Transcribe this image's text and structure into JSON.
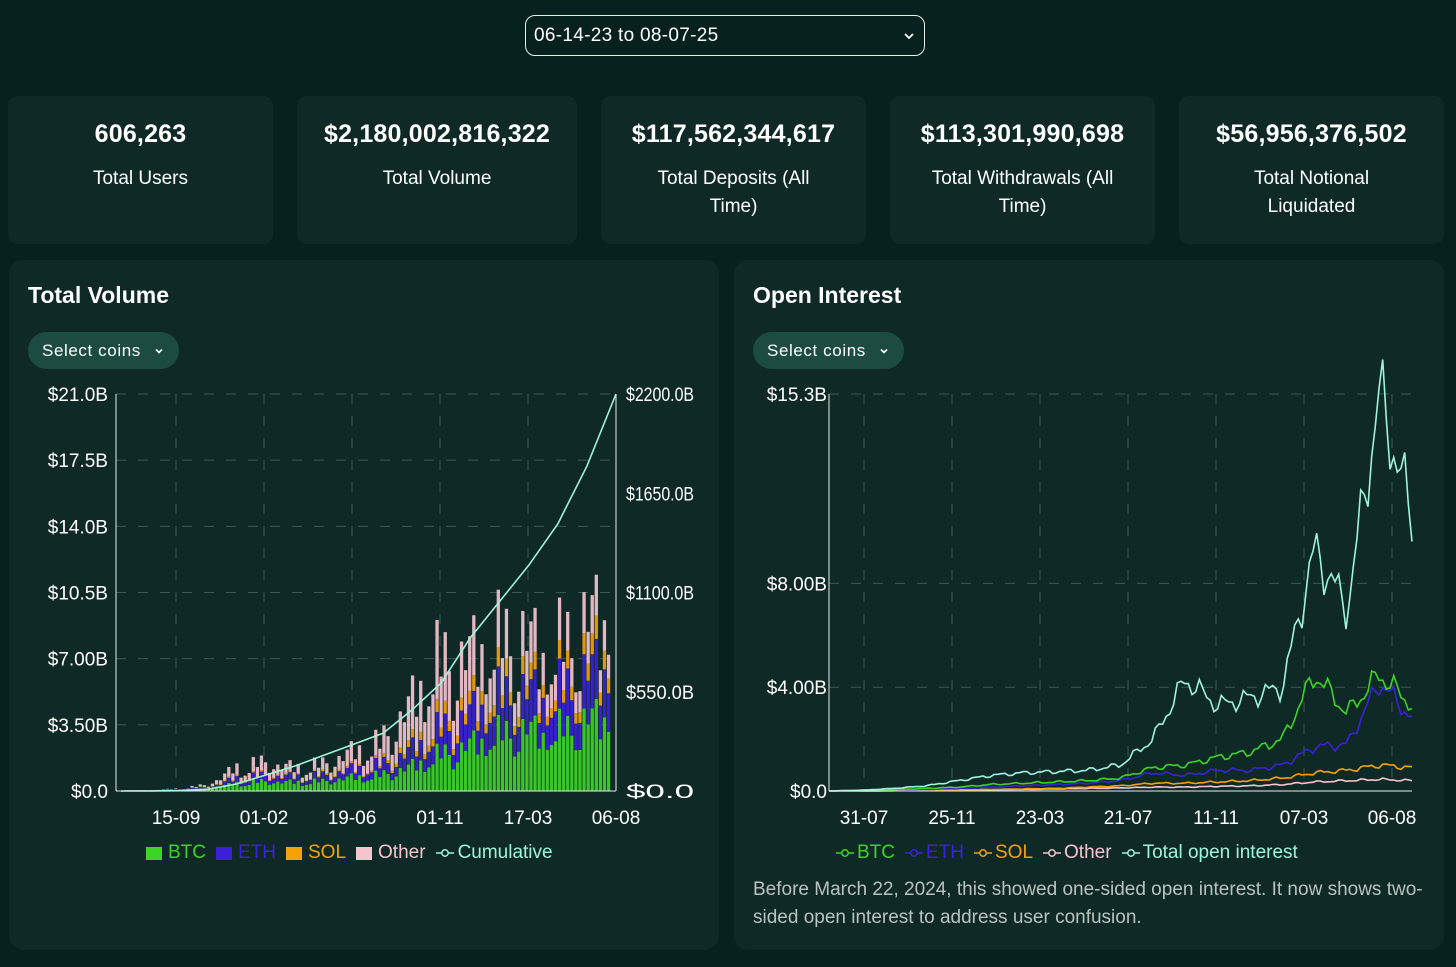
{
  "date_range": {
    "label": "06-14-23 to 08-07-25"
  },
  "stats": [
    {
      "value": "606,263",
      "label": "Total Users"
    },
    {
      "value": "$2,180,002,816,322",
      "label": "Total Volume"
    },
    {
      "value": "$117,562,344,617",
      "label": "Total Deposits (All Time)"
    },
    {
      "value": "$113,301,990,698",
      "label": "Total Withdrawals (All Time)"
    },
    {
      "value": "$56,956,376,502",
      "label": "Total Notional Liquidated"
    }
  ],
  "volume_panel": {
    "title": "Total Volume",
    "select_label": "Select coins",
    "legend": [
      {
        "label": "BTC",
        "color": "#3dd427",
        "marker": "square"
      },
      {
        "label": "ETH",
        "color": "#3a21d8",
        "marker": "square"
      },
      {
        "label": "SOL",
        "color": "#f5a20a",
        "marker": "square"
      },
      {
        "label": "Other",
        "color": "#f5c4cf",
        "marker": "square"
      },
      {
        "label": "Cumulative",
        "color": "#9ff3da",
        "marker": "line"
      }
    ]
  },
  "oi_panel": {
    "title": "Open Interest",
    "select_label": "Select coins",
    "note": "Before March 22, 2024, this showed one-sided open interest. It now shows two-sided open interest to address user confusion.",
    "legend": [
      {
        "label": "BTC",
        "color": "#3dd427",
        "marker": "line"
      },
      {
        "label": "ETH",
        "color": "#3a21d8",
        "marker": "line"
      },
      {
        "label": "SOL",
        "color": "#f5a20a",
        "marker": "line"
      },
      {
        "label": "Other",
        "color": "#f5c4cf",
        "marker": "line"
      },
      {
        "label": "Total open interest",
        "color": "#9ff3da",
        "marker": "line"
      }
    ]
  },
  "chart_data": [
    {
      "type": "bar",
      "stacked": true,
      "title": "Total Volume",
      "x_tick_labels": [
        "15-09",
        "01-02",
        "19-06",
        "01-11",
        "17-03",
        "06-08"
      ],
      "y_left": {
        "ticks": [
          0,
          3.5,
          7,
          10.5,
          14,
          17.5,
          21
        ],
        "labels": [
          "$0.0",
          "$3.50B",
          "$7.00B",
          "$10.5B",
          "$14.0B",
          "$17.5B",
          "$21.0B"
        ],
        "range": [
          0,
          21
        ],
        "unit": "billion USD"
      },
      "y_right": {
        "ticks": [
          0,
          550,
          1100,
          1650,
          2200
        ],
        "labels": [
          "$0.0",
          "$550.0B",
          "$1100.0B",
          "$1650.0B",
          "$2200.0B"
        ],
        "range": [
          0,
          2200
        ],
        "unit": "billion USD"
      },
      "series": [
        {
          "name": "BTC",
          "color": "#3dd427",
          "values": [
            0.01,
            0.02,
            0.05,
            0.12,
            0.4,
            0.5,
            0.45,
            0.5,
            0.7,
            0.8,
            1.2,
            1.8,
            2.3,
            2.8,
            3.2,
            2.9,
            3.5,
            4.0
          ]
        },
        {
          "name": "ETH",
          "color": "#3a21d8",
          "values": [
            0.0,
            0.01,
            0.03,
            0.08,
            0.25,
            0.3,
            0.28,
            0.3,
            0.4,
            0.5,
            0.8,
            1.2,
            1.5,
            1.8,
            2.0,
            1.7,
            2.3,
            2.6
          ]
        },
        {
          "name": "SOL",
          "color": "#f5a20a",
          "values": [
            0.0,
            0.0,
            0.01,
            0.02,
            0.05,
            0.06,
            0.05,
            0.06,
            0.08,
            0.12,
            0.3,
            0.5,
            0.6,
            0.7,
            0.8,
            0.6,
            0.9,
            1.0
          ]
        },
        {
          "name": "Other",
          "color": "#f5c4cf",
          "values": [
            0.0,
            0.01,
            0.03,
            0.1,
            0.5,
            0.6,
            0.4,
            0.5,
            0.8,
            1.0,
            2.0,
            3.0,
            2.5,
            2.2,
            2.0,
            1.5,
            1.8,
            1.6
          ]
        },
        {
          "name": "Cumulative",
          "color": "#9ff3da",
          "axis": "right",
          "values": [
            0,
            0.5,
            2,
            10,
            40,
            90,
            140,
            200,
            260,
            320,
            450,
            600,
            850,
            1050,
            1250,
            1480,
            1800,
            2200
          ]
        }
      ]
    },
    {
      "type": "line",
      "title": "Open Interest",
      "x_tick_labels": [
        "31-07",
        "25-11",
        "23-03",
        "21-07",
        "11-11",
        "07-03",
        "06-08"
      ],
      "y": {
        "ticks": [
          0,
          4,
          8,
          15.3
        ],
        "labels": [
          "$0.0",
          "$4.00B",
          "$8.00B",
          "$15.3B"
        ],
        "range": [
          0,
          15.3
        ],
        "unit": "billion USD"
      },
      "series": [
        {
          "name": "BTC",
          "color": "#3dd427",
          "values": [
            0.0,
            0.02,
            0.05,
            0.1,
            0.15,
            0.25,
            0.3,
            0.35,
            0.4,
            0.5,
            0.9,
            1.0,
            1.3,
            1.5,
            2.0,
            4.5,
            3.0,
            4.5,
            3.3
          ]
        },
        {
          "name": "ETH",
          "color": "#3a21d8",
          "values": [
            0.0,
            0.01,
            0.03,
            0.06,
            0.1,
            0.15,
            0.2,
            0.25,
            0.3,
            0.4,
            0.7,
            0.6,
            0.8,
            0.8,
            1.0,
            1.7,
            1.8,
            4.2,
            2.8
          ]
        },
        {
          "name": "SOL",
          "color": "#f5a20a",
          "values": [
            0.0,
            0.0,
            0.01,
            0.02,
            0.04,
            0.06,
            0.08,
            0.1,
            0.15,
            0.2,
            0.3,
            0.3,
            0.35,
            0.4,
            0.5,
            0.7,
            0.8,
            1.0,
            0.9
          ]
        },
        {
          "name": "Other",
          "color": "#f5c4cf",
          "values": [
            0.0,
            0.0,
            0.01,
            0.02,
            0.03,
            0.05,
            0.06,
            0.08,
            0.1,
            0.12,
            0.15,
            0.15,
            0.18,
            0.2,
            0.25,
            0.35,
            0.4,
            0.45,
            0.4
          ]
        },
        {
          "name": "Total open interest",
          "color": "#9ff3da",
          "values": [
            0.0,
            0.03,
            0.1,
            0.2,
            0.4,
            0.6,
            0.7,
            0.75,
            0.8,
            1.0,
            2.0,
            4.3,
            3.3,
            3.6,
            4.0,
            9.3,
            7.0,
            15.3,
            10.5
          ]
        }
      ]
    }
  ]
}
